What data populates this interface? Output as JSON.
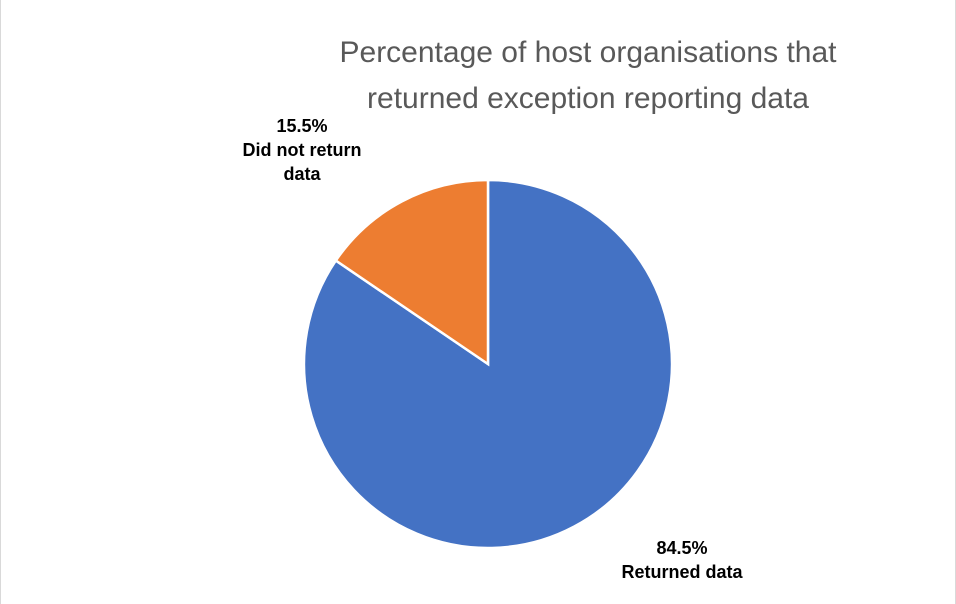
{
  "chart_data": {
    "type": "pie",
    "title": "Percentage of host organisations that returned exception reporting data",
    "categories": [
      "Returned data",
      "Did not return data"
    ],
    "values": [
      84.5,
      15.5
    ],
    "value_labels": [
      "84.5%",
      "15.5%"
    ],
    "colors": [
      "#4472c4",
      "#ed7d31"
    ]
  }
}
